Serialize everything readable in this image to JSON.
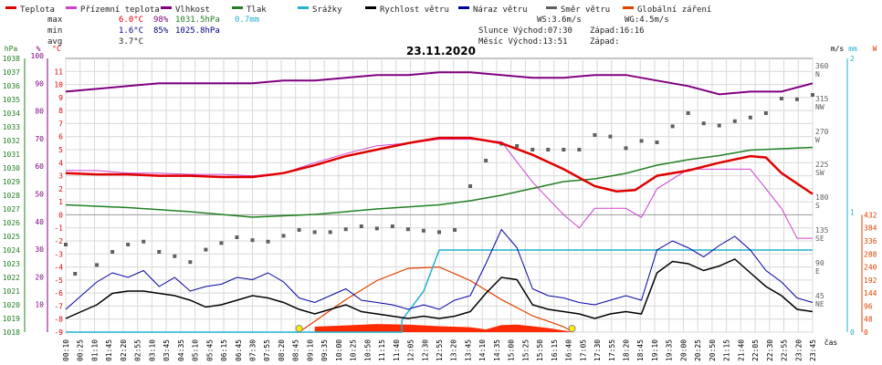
{
  "chart_data": {
    "type": "line",
    "title": "23.11.2020",
    "legend": [
      {
        "name": "Teplota",
        "color": "#e00000"
      },
      {
        "name": "Přízemní teplota",
        "color": "#d040d0"
      },
      {
        "name": "Vlhkost",
        "color": "#800080"
      },
      {
        "name": "Tlak",
        "color": "#208020"
      },
      {
        "name": "Srážky",
        "color": "#20b0d0"
      },
      {
        "name": "Rychlost větru",
        "color": "#000000"
      },
      {
        "name": "Náraz větru",
        "color": "#0000a0"
      },
      {
        "name": "Směr větru",
        "color": "#606060"
      },
      {
        "name": "Globální záření",
        "color": "#e04000"
      }
    ],
    "stats": {
      "max": {
        "label": "max",
        "temp": "6.0°C",
        "hum": "98%",
        "press": "1031.5hPa",
        "rain": "0.7mm"
      },
      "min": {
        "label": "min",
        "temp": "1.6°C",
        "hum": "85%",
        "press": "1025.8hPa"
      },
      "avg": {
        "label": "avg",
        "temp": "3.7°C"
      }
    },
    "info": {
      "ws": "WS:3.6m/s",
      "wg": "WG:4.5m/s",
      "sun": "Slunce Východ:07:30",
      "sun_set": "Západ:16:16",
      "moon": "Měsíc Východ:13:51",
      "moon_set": "Západ:"
    },
    "axes": {
      "hpa": {
        "unit": "hPa",
        "range": [
          1018,
          1038
        ],
        "ticks": [
          1018,
          1019,
          1020,
          1021,
          1022,
          1023,
          1024,
          1025,
          1026,
          1027,
          1028,
          1029,
          1030,
          1031,
          1032,
          1033,
          1034,
          1035,
          1036,
          1037,
          1038
        ]
      },
      "pct": {
        "unit": "%",
        "range": [
          0,
          100
        ],
        "ticks": [
          10,
          20,
          30,
          40,
          50,
          60,
          70,
          80,
          90,
          100
        ]
      },
      "temp": {
        "unit": "°C",
        "range": [
          -9,
          12
        ],
        "ticks": [
          -9,
          -8,
          -7,
          -6,
          -5,
          -4,
          -3,
          -2,
          -1,
          0,
          1,
          2,
          3,
          4,
          5,
          6,
          7,
          8,
          9,
          10,
          11
        ]
      },
      "ms": {
        "unit": "m/s",
        "range": [
          0,
          12
        ],
        "ticks": [
          0,
          1,
          2,
          3,
          4,
          5,
          6,
          7,
          8,
          9,
          10,
          11,
          12
        ]
      },
      "dir": {
        "range": [
          0,
          360
        ],
        "ticks": [
          "360 N",
          "315 NW",
          "270 W",
          "225 SW",
          "180 S",
          "135 SE",
          "90 E",
          "45 NE"
        ]
      },
      "mm": {
        "unit": "mm",
        "ticks": [
          "2",
          "1",
          "0"
        ]
      },
      "w": {
        "unit": "W",
        "ticks": [
          "432",
          "384",
          "336",
          "288",
          "240",
          "192",
          "144",
          "96",
          "48",
          "0"
        ]
      },
      "x_unit": "čas",
      "x_ticks": [
        "00:10",
        "00:25",
        "01:10",
        "01:45",
        "02:20",
        "02:55",
        "03:10",
        "03:45",
        "04:35",
        "05:10",
        "05:45",
        "06:15",
        "06:45",
        "07:30",
        "07:55",
        "08:20",
        "08:45",
        "09:10",
        "09:35",
        "10:00",
        "10:25",
        "10:50",
        "11:15",
        "11:40",
        "12:05",
        "12:30",
        "12:55",
        "13:20",
        "13:45",
        "14:10",
        "14:35",
        "15:00",
        "15:25",
        "15:50",
        "16:15",
        "16:40",
        "17:05",
        "17:30",
        "17:55",
        "18:20",
        "18:45",
        "19:10",
        "19:35",
        "20:00",
        "20:25",
        "20:50",
        "21:15",
        "21:40",
        "22:05",
        "22:30",
        "22:55",
        "23:20",
        "23:45"
      ]
    },
    "series": {
      "temperature_c": [
        [
          0,
          3.2
        ],
        [
          1,
          3.1
        ],
        [
          2,
          3.1
        ],
        [
          3,
          3.0
        ],
        [
          4,
          3.0
        ],
        [
          5,
          2.9
        ],
        [
          6,
          2.9
        ],
        [
          7,
          3.2
        ],
        [
          8,
          3.8
        ],
        [
          9,
          4.5
        ],
        [
          10,
          5.0
        ],
        [
          11,
          5.5
        ],
        [
          12,
          5.9
        ],
        [
          13,
          5.9
        ],
        [
          14,
          5.5
        ],
        [
          15,
          4.6
        ],
        [
          16,
          3.5
        ],
        [
          17,
          2.2
        ],
        [
          17.7,
          1.8
        ],
        [
          18.3,
          1.9
        ],
        [
          19,
          3.0
        ],
        [
          20,
          3.4
        ],
        [
          21,
          4.0
        ],
        [
          22,
          4.5
        ],
        [
          22.5,
          4.4
        ],
        [
          23,
          3.2
        ],
        [
          24,
          1.6
        ]
      ],
      "ground_temp_c": [
        [
          0,
          3.4
        ],
        [
          1,
          3.4
        ],
        [
          2,
          3.2
        ],
        [
          3,
          3.2
        ],
        [
          4,
          3.1
        ],
        [
          5,
          3.1
        ],
        [
          6,
          3.0
        ],
        [
          7,
          3.2
        ],
        [
          8,
          4.0
        ],
        [
          9,
          4.7
        ],
        [
          10,
          5.3
        ],
        [
          11,
          5.5
        ],
        [
          12,
          5.8
        ],
        [
          13,
          5.8
        ],
        [
          14,
          5.6
        ],
        [
          15,
          2.5
        ],
        [
          16,
          0.0
        ],
        [
          16.5,
          -1.0
        ],
        [
          17,
          0.5
        ],
        [
          18,
          0.5
        ],
        [
          18.5,
          -0.2
        ],
        [
          19,
          2.0
        ],
        [
          20,
          3.5
        ],
        [
          21,
          3.5
        ],
        [
          22,
          3.5
        ],
        [
          23,
          0.5
        ],
        [
          23.5,
          -1.8
        ],
        [
          24,
          -1.8
        ]
      ],
      "humidity_pct": [
        [
          0,
          87
        ],
        [
          1,
          88
        ],
        [
          2,
          89
        ],
        [
          3,
          90
        ],
        [
          4,
          90
        ],
        [
          5,
          90
        ],
        [
          6,
          90
        ],
        [
          7,
          91
        ],
        [
          8,
          91
        ],
        [
          9,
          92
        ],
        [
          10,
          93
        ],
        [
          11,
          93
        ],
        [
          12,
          94
        ],
        [
          13,
          94
        ],
        [
          14,
          93
        ],
        [
          15,
          92
        ],
        [
          16,
          92
        ],
        [
          17,
          93
        ],
        [
          18,
          93
        ],
        [
          19,
          91
        ],
        [
          20,
          89
        ],
        [
          21,
          86
        ],
        [
          22,
          87
        ],
        [
          23,
          87
        ],
        [
          24,
          90
        ]
      ],
      "pressure_hpa": [
        [
          0,
          1027.3
        ],
        [
          2,
          1027.1
        ],
        [
          4,
          1026.8
        ],
        [
          6,
          1026.4
        ],
        [
          8,
          1026.6
        ],
        [
          10,
          1027.0
        ],
        [
          12,
          1027.3
        ],
        [
          13,
          1027.6
        ],
        [
          14,
          1028.0
        ],
        [
          15,
          1028.5
        ],
        [
          16,
          1029.0
        ],
        [
          17,
          1029.2
        ],
        [
          18,
          1029.6
        ],
        [
          19,
          1030.2
        ],
        [
          20,
          1030.6
        ],
        [
          21,
          1030.9
        ],
        [
          22,
          1031.3
        ],
        [
          23,
          1031.4
        ],
        [
          24,
          1031.5
        ]
      ],
      "rain_mm": [
        [
          0,
          0
        ],
        [
          10.8,
          0
        ],
        [
          10.8,
          0.1
        ],
        [
          11.5,
          0.35
        ],
        [
          12.0,
          0.7
        ],
        [
          24,
          0.7
        ]
      ],
      "wind_speed_ms": [
        [
          0,
          0.6
        ],
        [
          0.5,
          0.9
        ],
        [
          1,
          1.2
        ],
        [
          1.5,
          1.7
        ],
        [
          2,
          1.8
        ],
        [
          2.5,
          1.8
        ],
        [
          3,
          1.7
        ],
        [
          3.5,
          1.6
        ],
        [
          4,
          1.4
        ],
        [
          4.5,
          1.1
        ],
        [
          5,
          1.2
        ],
        [
          5.5,
          1.4
        ],
        [
          6,
          1.6
        ],
        [
          6.5,
          1.5
        ],
        [
          7,
          1.3
        ],
        [
          7.5,
          1.0
        ],
        [
          8,
          0.8
        ],
        [
          8.5,
          1.0
        ],
        [
          9,
          1.2
        ],
        [
          9.5,
          0.9
        ],
        [
          10,
          0.8
        ],
        [
          10.5,
          0.7
        ],
        [
          11,
          0.6
        ],
        [
          11.5,
          0.7
        ],
        [
          12,
          0.6
        ],
        [
          12.5,
          0.7
        ],
        [
          13,
          0.9
        ],
        [
          13.5,
          1.7
        ],
        [
          14,
          2.4
        ],
        [
          14.5,
          2.3
        ],
        [
          15,
          1.2
        ],
        [
          15.5,
          1.0
        ],
        [
          16,
          0.9
        ],
        [
          16.5,
          0.8
        ],
        [
          17,
          0.6
        ],
        [
          17.5,
          0.8
        ],
        [
          18,
          0.9
        ],
        [
          18.5,
          0.8
        ],
        [
          19,
          2.6
        ],
        [
          19.5,
          3.1
        ],
        [
          20,
          3.0
        ],
        [
          20.5,
          2.7
        ],
        [
          21,
          2.9
        ],
        [
          21.5,
          3.2
        ],
        [
          22,
          2.6
        ],
        [
          22.5,
          2.0
        ],
        [
          23,
          1.6
        ],
        [
          23.5,
          1.0
        ],
        [
          24,
          0.9
        ]
      ],
      "wind_gust_ms": [
        [
          0,
          1.0
        ],
        [
          0.5,
          1.6
        ],
        [
          1,
          2.2
        ],
        [
          1.5,
          2.6
        ],
        [
          2,
          2.4
        ],
        [
          2.5,
          2.7
        ],
        [
          3,
          2.0
        ],
        [
          3.5,
          2.4
        ],
        [
          4,
          1.8
        ],
        [
          4.5,
          2.0
        ],
        [
          5,
          2.1
        ],
        [
          5.5,
          2.4
        ],
        [
          6,
          2.3
        ],
        [
          6.5,
          2.6
        ],
        [
          7,
          2.2
        ],
        [
          7.5,
          1.5
        ],
        [
          8,
          1.3
        ],
        [
          8.5,
          1.6
        ],
        [
          9,
          1.9
        ],
        [
          9.5,
          1.4
        ],
        [
          10,
          1.3
        ],
        [
          10.5,
          1.2
        ],
        [
          11,
          1.0
        ],
        [
          11.5,
          1.2
        ],
        [
          12,
          1.0
        ],
        [
          12.5,
          1.4
        ],
        [
          13,
          1.6
        ],
        [
          13.5,
          3.0
        ],
        [
          14,
          4.5
        ],
        [
          14.5,
          3.7
        ],
        [
          15,
          1.9
        ],
        [
          15.5,
          1.6
        ],
        [
          16,
          1.5
        ],
        [
          16.5,
          1.3
        ],
        [
          17,
          1.2
        ],
        [
          17.5,
          1.4
        ],
        [
          18,
          1.6
        ],
        [
          18.5,
          1.4
        ],
        [
          19,
          3.6
        ],
        [
          19.5,
          4.0
        ],
        [
          20,
          3.7
        ],
        [
          20.5,
          3.3
        ],
        [
          21,
          3.8
        ],
        [
          21.5,
          4.2
        ],
        [
          22,
          3.6
        ],
        [
          22.5,
          2.7
        ],
        [
          23,
          2.2
        ],
        [
          23.5,
          1.5
        ],
        [
          24,
          1.3
        ]
      ],
      "wind_dir_deg": [
        [
          0,
          120
        ],
        [
          0.3,
          80
        ],
        [
          1,
          92
        ],
        [
          1.5,
          110
        ],
        [
          2,
          120
        ],
        [
          2.5,
          124
        ],
        [
          3,
          110
        ],
        [
          3.5,
          104
        ],
        [
          4,
          96
        ],
        [
          4.5,
          113
        ],
        [
          5,
          122
        ],
        [
          5.5,
          130
        ],
        [
          6,
          126
        ],
        [
          6.5,
          124
        ],
        [
          7,
          132
        ],
        [
          7.5,
          140
        ],
        [
          8,
          137
        ],
        [
          8.5,
          137
        ],
        [
          9,
          141
        ],
        [
          9.5,
          145
        ],
        [
          10,
          142
        ],
        [
          10.5,
          145
        ],
        [
          11,
          141
        ],
        [
          11.5,
          139
        ],
        [
          12,
          137
        ],
        [
          12.5,
          140
        ],
        [
          13,
          200
        ],
        [
          13.5,
          235
        ],
        [
          14,
          258
        ],
        [
          14.5,
          255
        ],
        [
          15,
          250
        ],
        [
          15.5,
          250
        ],
        [
          16,
          250
        ],
        [
          16.5,
          250
        ],
        [
          17,
          270
        ],
        [
          17.5,
          268
        ],
        [
          18,
          252
        ],
        [
          18.5,
          262
        ],
        [
          19,
          260
        ],
        [
          19.5,
          282
        ],
        [
          20,
          300
        ],
        [
          20.5,
          286
        ],
        [
          21,
          283
        ],
        [
          21.5,
          289
        ],
        [
          22,
          294
        ],
        [
          22.5,
          300
        ],
        [
          23,
          320
        ],
        [
          23.5,
          319
        ],
        [
          24,
          325
        ]
      ],
      "radiation_w": [
        [
          7.5,
          0
        ],
        [
          8,
          40
        ],
        [
          9,
          120
        ],
        [
          10,
          190
        ],
        [
          11,
          235
        ],
        [
          12,
          240
        ],
        [
          13,
          190
        ],
        [
          14,
          120
        ],
        [
          15,
          60
        ],
        [
          16,
          20
        ],
        [
          16.3,
          0
        ]
      ],
      "radiation_measured_w": [
        [
          8.0,
          20
        ],
        [
          9,
          25
        ],
        [
          10,
          30
        ],
        [
          11,
          28
        ],
        [
          12,
          22
        ],
        [
          13,
          18
        ],
        [
          13.5,
          10
        ],
        [
          14,
          26
        ],
        [
          14.5,
          28
        ],
        [
          15,
          22
        ],
        [
          15.5,
          15
        ],
        [
          16,
          6
        ],
        [
          16.3,
          0
        ]
      ]
    },
    "markers": {
      "sunrise_h": 7.5,
      "sunset_h": 16.27
    }
  }
}
